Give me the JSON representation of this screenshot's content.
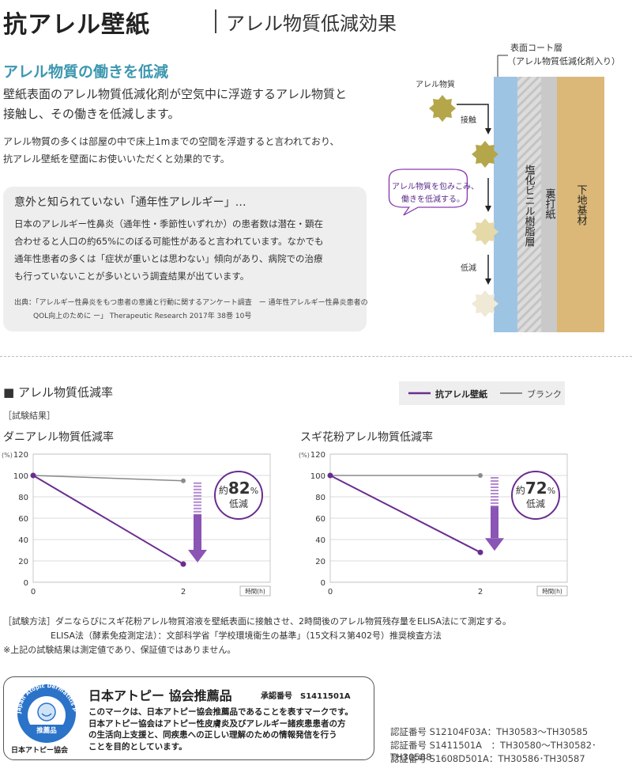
{
  "header": {
    "title": "抗アレル壁紙",
    "subtitle": "アレル物質低減効果"
  },
  "intro": {
    "heading": "アレル物質の働きを低減",
    "lead_line1": "壁紙表面のアレル物質低減化剤が空気中に浮遊するアレル物質と",
    "lead_line2": "接触し、その働きを低減します。",
    "body_line1": "アレル物質の多くは部屋の中で床上1mまでの空間を浮遊すると言われており、",
    "body_line2": "抗アレル壁紙を壁面にお使いいただくと効果的です。"
  },
  "info_box": {
    "title": "意外と知られていない「通年性アレルギー」…",
    "line1": "日本のアレルギー性鼻炎（通年性・季節性いずれか）の患者数は潜在・顕在",
    "line2": "合わせると人口の約65%にのぼる可能性があると言われています。なかでも",
    "line3": "通年性患者の多くは「症状が重いとは思わない」傾向があり、病院での治療",
    "line4": "も行っていないことが多いという調査結果が出ています。",
    "source1": "出典：「アレルギー性鼻炎をもつ患者の意識と行動に関するアンケート調査　ー 通年性アレルギー性鼻炎患者の",
    "source2": "QOL向上のために ー」 Therapeutic Research 2017年 38巻 10号"
  },
  "diagram": {
    "top_label1": "表面コート層",
    "top_label2": "（アレル物質低減化剤入り）",
    "allergen_label": "アレル物質",
    "contact_label": "接触",
    "reduce_label": "低減",
    "bubble_line1": "アレル物質を包みこみ、",
    "bubble_line2": "働きを低減する。",
    "layer_vinyl": "塩化ビニル樹脂層",
    "layer_backing": "裏打紙",
    "layer_base": "下地基材",
    "colors": {
      "coat": "#9ec4e4",
      "vinyl": "#d8d8d8",
      "backing": "#c8c8c8",
      "base": "#dbb878",
      "allergen_dark": "#b5a64a",
      "allergen_light": "#efe9d6"
    }
  },
  "charts_section": {
    "heading": "■ アレル物質低減率",
    "test_results": "［試験結果］",
    "legend_product": "抗アレル壁紙",
    "legend_blank": "ブランク",
    "product_color": "#6a2d8f",
    "blank_color": "#8a8a8a"
  },
  "chart_data": [
    {
      "type": "line",
      "title": "ダニアレル物質低減率",
      "y_unit": "(%)",
      "x_unit": "時間(h)",
      "x": [
        0,
        2
      ],
      "ylim": [
        0,
        120
      ],
      "yticks": [
        0,
        20,
        40,
        60,
        80,
        100,
        120
      ],
      "series": [
        {
          "name": "抗アレル壁紙",
          "values": [
            100,
            17
          ]
        },
        {
          "name": "ブランク",
          "values": [
            100,
            95
          ]
        }
      ],
      "annotation": {
        "prefix": "約",
        "value": "82",
        "unit": "%",
        "label": "低減"
      }
    },
    {
      "type": "line",
      "title": "スギ花粉アレル物質低減率",
      "y_unit": "(%)",
      "x_unit": "時間(h)",
      "x": [
        0,
        2
      ],
      "ylim": [
        0,
        120
      ],
      "yticks": [
        0,
        20,
        40,
        60,
        80,
        100,
        120
      ],
      "series": [
        {
          "name": "抗アレル壁紙",
          "values": [
            100,
            28
          ]
        },
        {
          "name": "ブランク",
          "values": [
            100,
            100
          ]
        }
      ],
      "annotation": {
        "prefix": "約",
        "value": "72",
        "unit": "%",
        "label": "低減"
      }
    }
  ],
  "notes": {
    "method1": "［試験方法］ダニならびにスギ花粉アレル物質溶液を壁紙表面に接触させ、2時間後のアレル物質残存量をELISA法にて測定する。",
    "method2": "ELISA法（酵素免疫測定法）：文部科学省「学校環境衛生の基準」（15文科ス第402号）推奨検査方法",
    "disclaimer": "※上記の試験結果は測定値であり、保証値ではありません。"
  },
  "badge": {
    "seal_top": "Japan Atopic Dermatitis Patients Association",
    "seal_ribbon": "推薦品",
    "org_name": "日本アトピー協会",
    "title": "日本アトピー 協会推薦品",
    "approval": "承認番号　S1411501A",
    "line1": "このマークは、日本アトピー協会推薦品であることを表すマークです。",
    "line2": "日本アトピー協会はアトピー性皮膚炎及びアレルギー諸疾患患者の方",
    "line3": "の生活向上支援と、同疾患への正しい理解のための情報発信を行う",
    "line4": "ことを目的としています。"
  },
  "certs": [
    "認証番号 S12104F03A：TH30583〜TH30585",
    "認証番号 S1411501A　：TH30580〜TH30582･TH30588",
    "認証番号 S1608D501A：TH30586･TH30587"
  ]
}
